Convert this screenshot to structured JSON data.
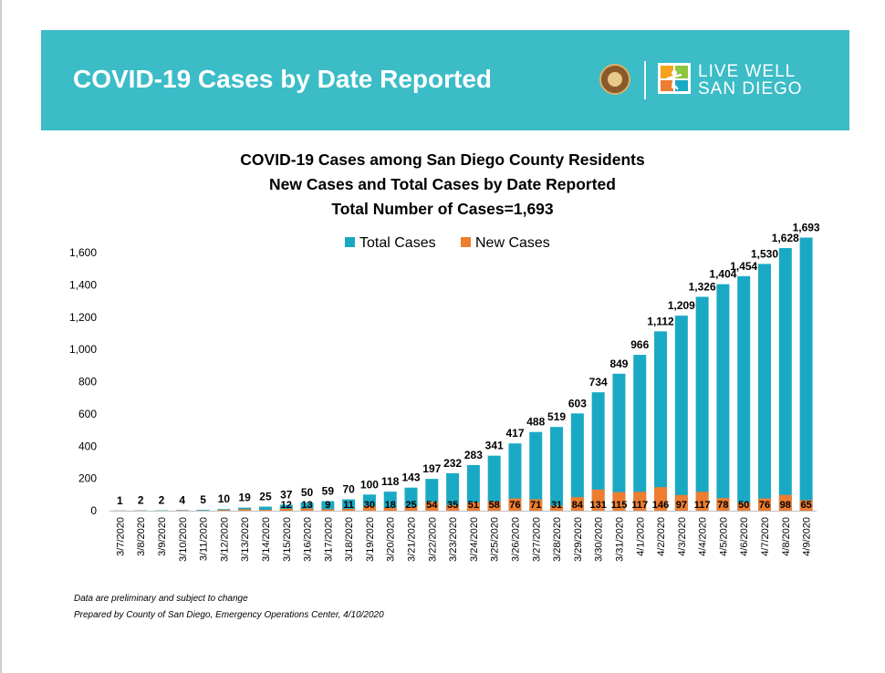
{
  "header": {
    "title": "COVID-19 Cases by Date Reported",
    "logo_text_line1": "LIVE WELL",
    "logo_text_line2": "SAN DIEGO",
    "accent_color": "#3bbcc7"
  },
  "chart_data": {
    "type": "bar",
    "title": [
      "COVID-19 Cases among San Diego County Residents",
      "New Cases and Total Cases by Date Reported",
      "Total Number of Cases=1,693"
    ],
    "xlabel": "",
    "ylabel": "",
    "ylim": [
      0,
      1700
    ],
    "yticks": [
      0,
      200,
      400,
      600,
      800,
      1000,
      1200,
      1400,
      1600
    ],
    "ytick_labels": [
      "0",
      "200",
      "400",
      "600",
      "800",
      "1,000",
      "1,200",
      "1,400",
      "1,600"
    ],
    "grid": false,
    "legend_position": "top-center",
    "categories": [
      "3/7/2020",
      "3/8/2020",
      "3/9/2020",
      "3/10/2020",
      "3/11/2020",
      "3/12/2020",
      "3/13/2020",
      "3/14/2020",
      "3/15/2020",
      "3/16/2020",
      "3/17/2020",
      "3/18/2020",
      "3/19/2020",
      "3/20/2020",
      "3/21/2020",
      "3/22/2020",
      "3/23/2020",
      "3/24/2020",
      "3/25/2020",
      "3/26/2020",
      "3/27/2020",
      "3/28/2020",
      "3/29/2020",
      "3/30/2020",
      "3/31/2020",
      "4/1/2020",
      "4/2/2020",
      "4/3/2020",
      "4/4/2020",
      "4/5/2020",
      "4/6/2020",
      "4/7/2020",
      "4/8/2020",
      "4/9/2020"
    ],
    "series": [
      {
        "name": "Total Cases",
        "color": "#1aa9c4",
        "values": [
          1,
          2,
          2,
          4,
          5,
          10,
          19,
          25,
          37,
          50,
          59,
          70,
          100,
          118,
          143,
          197,
          232,
          283,
          341,
          417,
          488,
          519,
          603,
          734,
          849,
          966,
          1112,
          1209,
          1326,
          1404,
          1454,
          1530,
          1628,
          1693
        ],
        "labels": [
          "1",
          "2",
          "2",
          "4",
          "5",
          "10",
          "19",
          "25",
          "37",
          "50",
          "59",
          "70",
          "100",
          "118",
          "143",
          "197",
          "232",
          "283",
          "341",
          "417",
          "488",
          "519",
          "603",
          "734",
          "849",
          "966",
          "1,112",
          "1,209",
          "1,326",
          "1,404",
          "1,454",
          "1,530",
          "1,628",
          "1,693"
        ]
      },
      {
        "name": "New Cases",
        "color": "#ed7d31",
        "values": [
          1,
          1,
          0,
          2,
          1,
          5,
          9,
          6,
          12,
          13,
          9,
          11,
          30,
          18,
          25,
          54,
          35,
          51,
          58,
          76,
          71,
          31,
          84,
          131,
          115,
          117,
          146,
          97,
          117,
          78,
          50,
          76,
          98,
          65
        ],
        "labels": [
          "",
          "",
          "",
          "",
          "",
          "",
          "",
          "",
          "12",
          "13",
          "9",
          "11",
          "30",
          "18",
          "25",
          "54",
          "35",
          "51",
          "58",
          "76",
          "71",
          "31",
          "84",
          "131",
          "115",
          "117",
          "146",
          "97",
          "117",
          "78",
          "50",
          "76",
          "98",
          "65"
        ]
      }
    ]
  },
  "footnotes": {
    "line1": "Data are preliminary and subject to change",
    "line2": "Prepared by County of San Diego, Emergency Operations Center, 4/10/2020"
  }
}
